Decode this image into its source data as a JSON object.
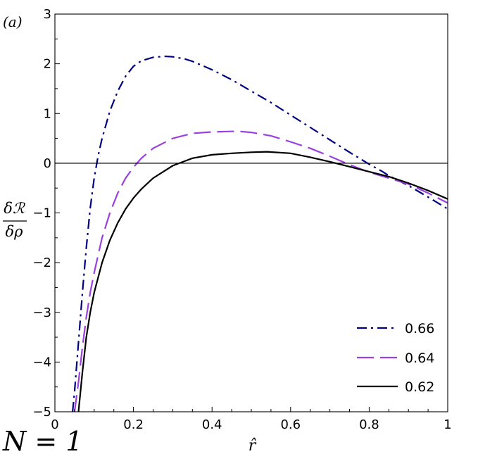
{
  "chart_data": {
    "type": "line",
    "panel_label": "(a)",
    "xlabel": "r̂",
    "ylabel_numerator": "δℛ",
    "ylabel_denominator": "δρ",
    "corner_text": "N = 1",
    "xlim": [
      0,
      1
    ],
    "ylim": [
      -5,
      3
    ],
    "x_ticks": [
      "0",
      "0.2",
      "0.4",
      "0.6",
      "0.8",
      "1"
    ],
    "x_tick_values": [
      0,
      0.2,
      0.4,
      0.6,
      0.8,
      1
    ],
    "y_ticks": [
      "3",
      "2",
      "1",
      "0",
      "−1",
      "−2",
      "−3",
      "−4",
      "−5"
    ],
    "y_tick_values": [
      3,
      2,
      1,
      0,
      -1,
      -2,
      -3,
      -4,
      -5
    ],
    "zero_line": true,
    "grid": false,
    "legend_position": "bottom-right",
    "series": [
      {
        "name": "0.66",
        "color": "#000080",
        "dash": "dash-dot",
        "x": [
          0.045,
          0.05,
          0.06,
          0.07,
          0.08,
          0.09,
          0.1,
          0.11,
          0.12,
          0.14,
          0.16,
          0.18,
          0.2,
          0.22,
          0.25,
          0.28,
          0.3,
          0.33,
          0.35,
          0.4,
          0.45,
          0.5,
          0.55,
          0.6,
          0.65,
          0.7,
          0.75,
          0.8,
          0.83,
          0.85,
          0.9,
          0.95,
          1.0
        ],
        "y": [
          -5,
          -4.6,
          -3.6,
          -2.6,
          -1.7,
          -0.9,
          -0.3,
          0.15,
          0.5,
          1.05,
          1.45,
          1.75,
          1.95,
          2.06,
          2.13,
          2.15,
          2.14,
          2.1,
          2.05,
          1.88,
          1.68,
          1.45,
          1.22,
          0.97,
          0.72,
          0.47,
          0.22,
          -0.02,
          -0.15,
          -0.25,
          -0.45,
          -0.68,
          -0.92
        ]
      },
      {
        "name": "0.64",
        "color": "#9a3fe0",
        "dash": "long-dash",
        "x": [
          0.05,
          0.06,
          0.07,
          0.08,
          0.09,
          0.1,
          0.12,
          0.14,
          0.16,
          0.18,
          0.2,
          0.22,
          0.25,
          0.3,
          0.35,
          0.4,
          0.45,
          0.47,
          0.5,
          0.55,
          0.6,
          0.65,
          0.7,
          0.75,
          0.8,
          0.85,
          0.9,
          0.95,
          1.0
        ],
        "y": [
          -5,
          -4.4,
          -3.7,
          -3.1,
          -2.6,
          -2.2,
          -1.5,
          -1.0,
          -0.6,
          -0.3,
          -0.08,
          0.1,
          0.3,
          0.5,
          0.6,
          0.63,
          0.64,
          0.64,
          0.62,
          0.55,
          0.43,
          0.3,
          0.14,
          -0.03,
          -0.18,
          -0.3,
          -0.42,
          -0.6,
          -0.8
        ]
      },
      {
        "name": "0.62",
        "color": "#000000",
        "dash": "solid",
        "x": [
          0.06,
          0.07,
          0.08,
          0.09,
          0.1,
          0.12,
          0.14,
          0.16,
          0.18,
          0.2,
          0.22,
          0.25,
          0.3,
          0.35,
          0.4,
          0.45,
          0.5,
          0.54,
          0.6,
          0.65,
          0.7,
          0.75,
          0.8,
          0.85,
          0.9,
          0.95,
          1.0
        ],
        "y": [
          -5,
          -4.2,
          -3.5,
          -3.0,
          -2.6,
          -2.0,
          -1.55,
          -1.2,
          -0.92,
          -0.7,
          -0.52,
          -0.3,
          -0.05,
          0.1,
          0.17,
          0.2,
          0.22,
          0.23,
          0.2,
          0.12,
          0.03,
          -0.07,
          -0.17,
          -0.27,
          -0.4,
          -0.55,
          -0.72
        ]
      }
    ]
  }
}
